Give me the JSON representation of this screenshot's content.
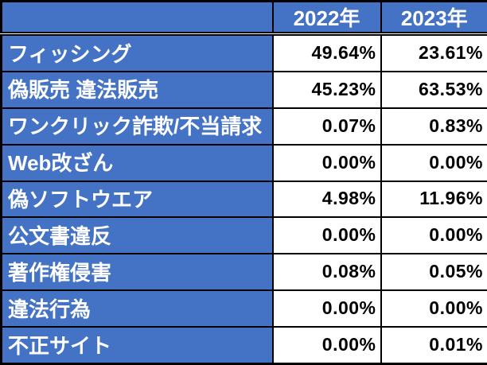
{
  "colors": {
    "header_bg": "#4472C4",
    "label_bg": "#4472C4",
    "header_text": "#FFFFFF",
    "label_text": "#FFFFFF",
    "value_bg": "#FFFFFF",
    "value_text": "#000000",
    "border": "#000000"
  },
  "table": {
    "corner_header": "",
    "column_headers": [
      "2022年",
      "2023年"
    ],
    "rows": [
      {
        "label": "フィッシング",
        "values": [
          "49.64%",
          "23.61%"
        ]
      },
      {
        "label": "偽販売 違法販売",
        "values": [
          "45.23%",
          "63.53%"
        ]
      },
      {
        "label": "ワンクリック詐欺/不当請求",
        "values": [
          "0.07%",
          "0.83%"
        ]
      },
      {
        "label": "Web改ざん",
        "values": [
          "0.00%",
          "0.00%"
        ]
      },
      {
        "label": "偽ソフトウエア",
        "values": [
          "4.98%",
          "11.96%"
        ]
      },
      {
        "label": "公文書違反",
        "values": [
          "0.00%",
          "0.00%"
        ]
      },
      {
        "label": "著作権侵害",
        "values": [
          "0.08%",
          "0.05%"
        ]
      },
      {
        "label": "違法行為",
        "values": [
          "0.00%",
          "0.00%"
        ]
      },
      {
        "label": "不正サイト",
        "values": [
          "0.00%",
          "0.01%"
        ]
      }
    ]
  },
  "chart_data": {
    "type": "table",
    "categories": [
      "フィッシング",
      "偽販売 違法販売",
      "ワンクリック詐欺/不当請求",
      "Web改ざん",
      "偽ソフトウエア",
      "公文書違反",
      "著作権侵害",
      "違法行為",
      "不正サイト"
    ],
    "series": [
      {
        "name": "2022年",
        "values": [
          49.64,
          45.23,
          0.07,
          0.0,
          4.98,
          0.0,
          0.08,
          0.0,
          0.0
        ]
      },
      {
        "name": "2023年",
        "values": [
          23.61,
          63.53,
          0.83,
          0.0,
          11.96,
          0.0,
          0.05,
          0.0,
          0.01
        ]
      }
    ],
    "unit": "%",
    "title": ""
  }
}
